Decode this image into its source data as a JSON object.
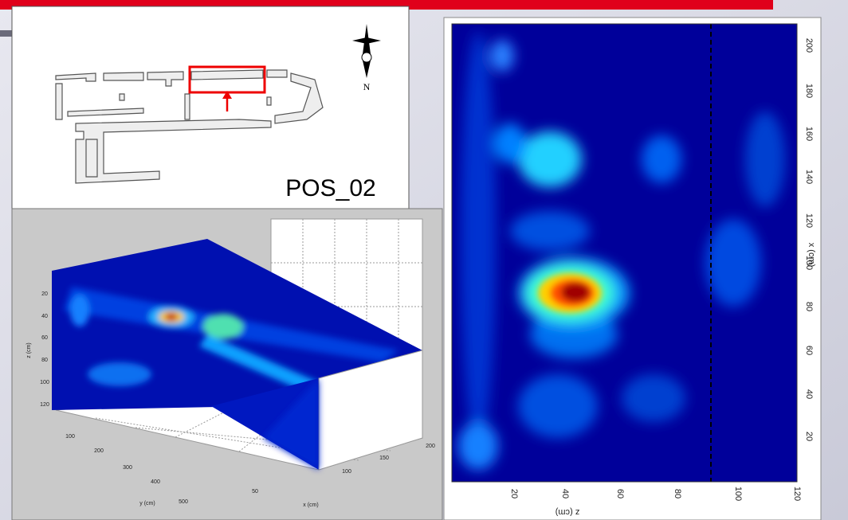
{
  "map_panel": {
    "label": "POS_02",
    "north": "N"
  },
  "heatmap_panel": {
    "side_axis": {
      "label": "x (cm)",
      "ticks": [
        "200",
        "180",
        "160",
        "140",
        "120",
        "100",
        "80",
        "60",
        "40",
        "20"
      ]
    },
    "bottom_axis": {
      "label": "z (cm)",
      "ticks": [
        "20",
        "40",
        "60",
        "80",
        "100",
        "120"
      ]
    }
  },
  "volume_panel": {
    "z_axis": {
      "label": "z (cm)",
      "ticks": [
        "20",
        "40",
        "60",
        "80",
        "100",
        "120"
      ]
    },
    "y_axis": {
      "label": "y (cm)",
      "ticks": [
        "100",
        "200",
        "300",
        "400",
        "500"
      ]
    },
    "x_axis": {
      "label": "x (cm)",
      "ticks": [
        "50",
        "100",
        "150",
        "200"
      ]
    }
  }
}
